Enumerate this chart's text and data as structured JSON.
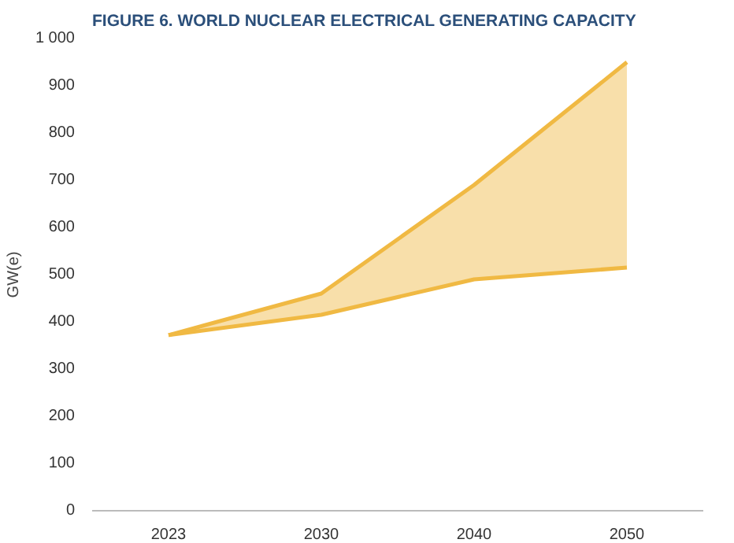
{
  "chart_data": {
    "type": "line",
    "title": "FIGURE 6. WORLD NUCLEAR ELECTRICAL GENERATING CAPACITY",
    "ylabel": "GW(e)",
    "categories": [
      "2023",
      "2030",
      "2040",
      "2050"
    ],
    "series": [
      {
        "color": "#f0b943",
        "values": [
          372,
          415,
          490,
          515
        ]
      },
      {
        "color": "#f0b943",
        "values": [
          372,
          460,
          690,
          950
        ],
        "lower": [
          372,
          415,
          490,
          515
        ],
        "upper": [
          372,
          460,
          690,
          950
        ]
      }
    ],
    "ylim": [
      0,
      1000
    ],
    "yticks": [
      0,
      100,
      200,
      300,
      400,
      500,
      600,
      700,
      800,
      900,
      {
        "value": 1000,
        "label": "1 000"
      }
    ],
    "grid": false,
    "line_style": "solid"
  }
}
